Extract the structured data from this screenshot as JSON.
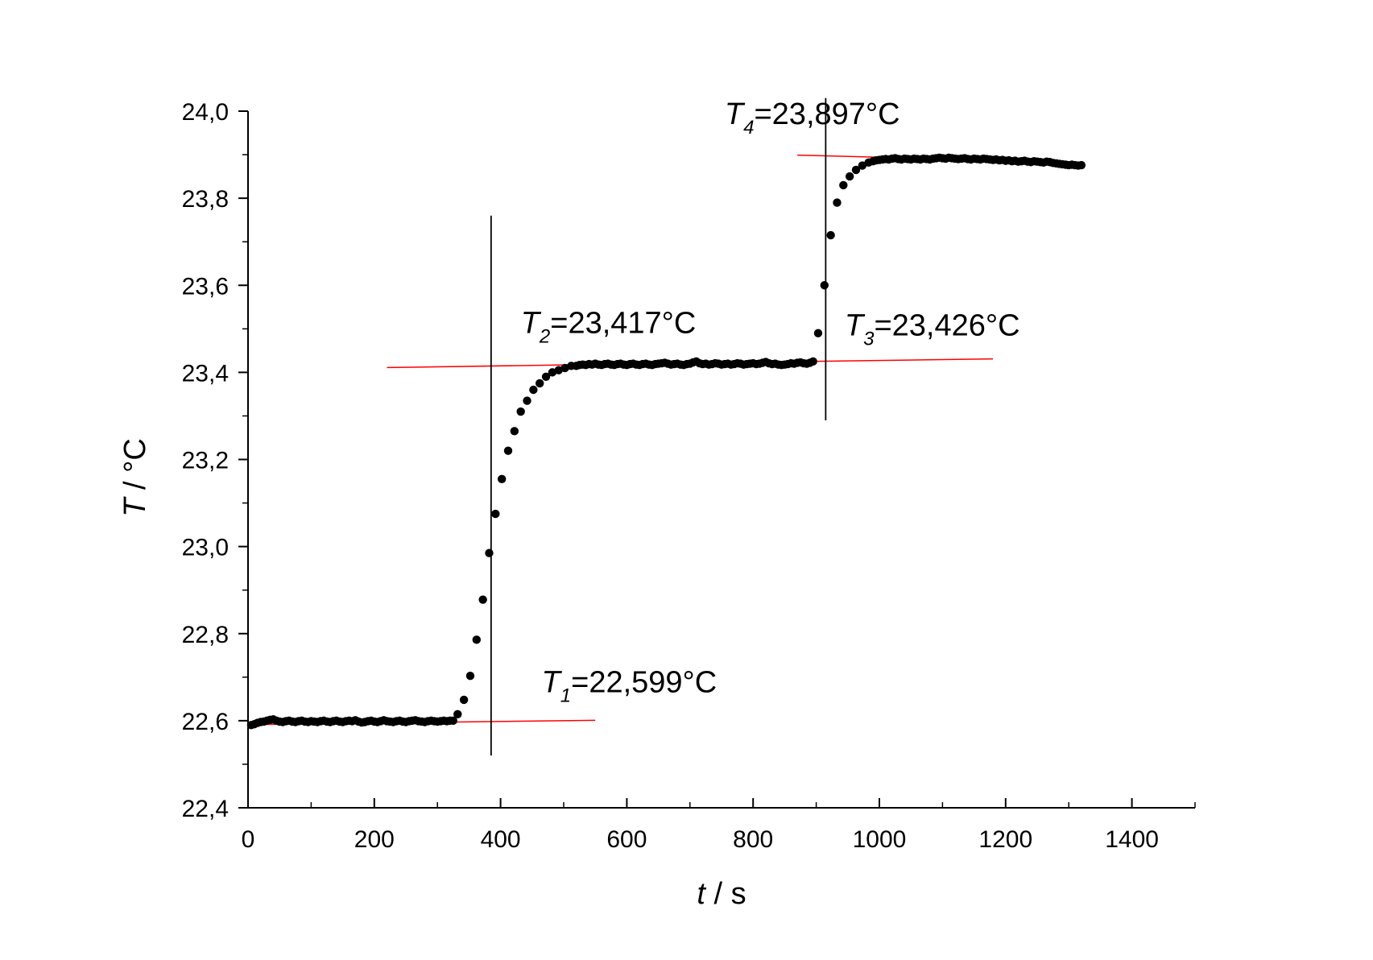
{
  "chart_data": {
    "type": "scatter",
    "xlabel_var": "t",
    "xlabel_unit": " / s",
    "ylabel_var": "T",
    "ylabel_unit": " / °C",
    "xlim": [
      0,
      1500
    ],
    "ylim": [
      22.4,
      24.0
    ],
    "x_ticks": [
      0,
      200,
      400,
      600,
      800,
      1000,
      1200,
      1400
    ],
    "x_tick_labels": [
      "0",
      "200",
      "400",
      "600",
      "800",
      "1000",
      "1200",
      "1400"
    ],
    "y_ticks": [
      22.4,
      22.6,
      22.8,
      23.0,
      23.2,
      23.4,
      23.6,
      23.8,
      24.0
    ],
    "y_tick_labels": [
      "22,4",
      "22,6",
      "22,8",
      "23,0",
      "23,2",
      "23,4",
      "23,6",
      "23,8",
      "24,0"
    ],
    "grid": false,
    "legend": "none",
    "colors": {
      "points": "#000000",
      "fit_lines": "#ff0000",
      "vertical_lines": "#000000"
    },
    "series": [
      {
        "marker": "filled-circle",
        "points": [
          [
            5,
            22.59
          ],
          [
            10,
            22.592
          ],
          [
            15,
            22.595
          ],
          [
            20,
            22.597
          ],
          [
            25,
            22.598
          ],
          [
            30,
            22.6
          ],
          [
            35,
            22.602
          ],
          [
            40,
            22.603
          ],
          [
            45,
            22.6
          ],
          [
            50,
            22.598
          ],
          [
            55,
            22.597
          ],
          [
            60,
            22.599
          ],
          [
            65,
            22.6
          ],
          [
            70,
            22.598
          ],
          [
            75,
            22.597
          ],
          [
            80,
            22.599
          ],
          [
            85,
            22.6
          ],
          [
            90,
            22.598
          ],
          [
            95,
            22.597
          ],
          [
            100,
            22.599
          ],
          [
            105,
            22.598
          ],
          [
            110,
            22.597
          ],
          [
            115,
            22.599
          ],
          [
            120,
            22.6
          ],
          [
            125,
            22.598
          ],
          [
            130,
            22.597
          ],
          [
            135,
            22.599
          ],
          [
            140,
            22.6
          ],
          [
            145,
            22.598
          ],
          [
            150,
            22.597
          ],
          [
            155,
            22.599
          ],
          [
            160,
            22.6
          ],
          [
            165,
            22.599
          ],
          [
            170,
            22.601
          ],
          [
            175,
            22.598
          ],
          [
            180,
            22.596
          ],
          [
            185,
            22.597
          ],
          [
            190,
            22.599
          ],
          [
            195,
            22.6
          ],
          [
            200,
            22.598
          ],
          [
            205,
            22.597
          ],
          [
            210,
            22.599
          ],
          [
            215,
            22.601
          ],
          [
            220,
            22.599
          ],
          [
            225,
            22.598
          ],
          [
            230,
            22.597
          ],
          [
            235,
            22.599
          ],
          [
            240,
            22.6
          ],
          [
            245,
            22.598
          ],
          [
            250,
            22.597
          ],
          [
            255,
            22.599
          ],
          [
            260,
            22.6
          ],
          [
            265,
            22.601
          ],
          [
            270,
            22.599
          ],
          [
            275,
            22.598
          ],
          [
            280,
            22.597
          ],
          [
            285,
            22.599
          ],
          [
            290,
            22.6
          ],
          [
            295,
            22.599
          ],
          [
            300,
            22.598
          ],
          [
            305,
            22.599
          ],
          [
            310,
            22.6
          ],
          [
            315,
            22.599
          ],
          [
            320,
            22.6
          ],
          [
            325,
            22.6
          ],
          [
            332,
            22.615
          ],
          [
            342,
            22.648
          ],
          [
            352,
            22.703
          ],
          [
            362,
            22.786
          ],
          [
            372,
            22.878
          ],
          [
            382,
            22.985
          ],
          [
            392,
            23.075
          ],
          [
            402,
            23.155
          ],
          [
            412,
            23.22
          ],
          [
            422,
            23.265
          ],
          [
            432,
            23.31
          ],
          [
            442,
            23.335
          ],
          [
            452,
            23.36
          ],
          [
            462,
            23.375
          ],
          [
            472,
            23.39
          ],
          [
            482,
            23.4
          ],
          [
            492,
            23.405
          ],
          [
            502,
            23.41
          ],
          [
            512,
            23.415
          ],
          [
            520,
            23.415
          ],
          [
            525,
            23.417
          ],
          [
            530,
            23.418
          ],
          [
            535,
            23.417
          ],
          [
            540,
            23.419
          ],
          [
            545,
            23.418
          ],
          [
            550,
            23.42
          ],
          [
            555,
            23.418
          ],
          [
            560,
            23.417
          ],
          [
            565,
            23.419
          ],
          [
            570,
            23.42
          ],
          [
            575,
            23.418
          ],
          [
            580,
            23.417
          ],
          [
            585,
            23.419
          ],
          [
            590,
            23.42
          ],
          [
            595,
            23.418
          ],
          [
            600,
            23.417
          ],
          [
            605,
            23.419
          ],
          [
            610,
            23.42
          ],
          [
            615,
            23.418
          ],
          [
            620,
            23.417
          ],
          [
            625,
            23.419
          ],
          [
            630,
            23.42
          ],
          [
            635,
            23.418
          ],
          [
            640,
            23.417
          ],
          [
            645,
            23.419
          ],
          [
            650,
            23.42
          ],
          [
            655,
            23.421
          ],
          [
            660,
            23.422
          ],
          [
            665,
            23.42
          ],
          [
            670,
            23.418
          ],
          [
            675,
            23.419
          ],
          [
            680,
            23.42
          ],
          [
            685,
            23.418
          ],
          [
            690,
            23.417
          ],
          [
            695,
            23.419
          ],
          [
            700,
            23.42
          ],
          [
            705,
            23.423
          ],
          [
            710,
            23.425
          ],
          [
            715,
            23.421
          ],
          [
            720,
            23.419
          ],
          [
            725,
            23.42
          ],
          [
            730,
            23.418
          ],
          [
            735,
            23.419
          ],
          [
            740,
            23.421
          ],
          [
            745,
            23.42
          ],
          [
            750,
            23.418
          ],
          [
            755,
            23.419
          ],
          [
            760,
            23.42
          ],
          [
            765,
            23.418
          ],
          [
            770,
            23.419
          ],
          [
            775,
            23.421
          ],
          [
            780,
            23.42
          ],
          [
            785,
            23.418
          ],
          [
            790,
            23.419
          ],
          [
            795,
            23.42
          ],
          [
            800,
            23.421
          ],
          [
            805,
            23.419
          ],
          [
            810,
            23.42
          ],
          [
            815,
            23.422
          ],
          [
            820,
            23.424
          ],
          [
            825,
            23.421
          ],
          [
            830,
            23.419
          ],
          [
            835,
            23.42
          ],
          [
            840,
            23.418
          ],
          [
            845,
            23.417
          ],
          [
            850,
            23.418
          ],
          [
            855,
            23.419
          ],
          [
            860,
            23.421
          ],
          [
            865,
            23.42
          ],
          [
            870,
            23.422
          ],
          [
            875,
            23.423
          ],
          [
            880,
            23.421
          ],
          [
            885,
            23.42
          ],
          [
            890,
            23.422
          ],
          [
            895,
            23.425
          ],
          [
            903,
            23.49
          ],
          [
            913,
            23.6
          ],
          [
            923,
            23.715
          ],
          [
            933,
            23.79
          ],
          [
            943,
            23.83
          ],
          [
            953,
            23.85
          ],
          [
            963,
            23.865
          ],
          [
            973,
            23.875
          ],
          [
            983,
            23.882
          ],
          [
            990,
            23.885
          ],
          [
            995,
            23.887
          ],
          [
            1000,
            23.888
          ],
          [
            1005,
            23.889
          ],
          [
            1010,
            23.89
          ],
          [
            1015,
            23.889
          ],
          [
            1020,
            23.891
          ],
          [
            1025,
            23.892
          ],
          [
            1030,
            23.89
          ],
          [
            1035,
            23.889
          ],
          [
            1040,
            23.891
          ],
          [
            1045,
            23.89
          ],
          [
            1050,
            23.889
          ],
          [
            1055,
            23.891
          ],
          [
            1060,
            23.89
          ],
          [
            1065,
            23.889
          ],
          [
            1070,
            23.891
          ],
          [
            1075,
            23.89
          ],
          [
            1080,
            23.889
          ],
          [
            1085,
            23.891
          ],
          [
            1090,
            23.892
          ],
          [
            1095,
            23.893
          ],
          [
            1100,
            23.892
          ],
          [
            1105,
            23.891
          ],
          [
            1110,
            23.893
          ],
          [
            1115,
            23.892
          ],
          [
            1120,
            23.891
          ],
          [
            1125,
            23.89
          ],
          [
            1130,
            23.891
          ],
          [
            1135,
            23.892
          ],
          [
            1140,
            23.89
          ],
          [
            1145,
            23.889
          ],
          [
            1150,
            23.891
          ],
          [
            1155,
            23.89
          ],
          [
            1160,
            23.889
          ],
          [
            1165,
            23.891
          ],
          [
            1170,
            23.89
          ],
          [
            1175,
            23.889
          ],
          [
            1180,
            23.888
          ],
          [
            1185,
            23.889
          ],
          [
            1190,
            23.887
          ],
          [
            1195,
            23.888
          ],
          [
            1200,
            23.886
          ],
          [
            1205,
            23.887
          ],
          [
            1210,
            23.885
          ],
          [
            1215,
            23.886
          ],
          [
            1220,
            23.884
          ],
          [
            1225,
            23.885
          ],
          [
            1230,
            23.886
          ],
          [
            1235,
            23.884
          ],
          [
            1240,
            23.883
          ],
          [
            1245,
            23.885
          ],
          [
            1250,
            23.884
          ],
          [
            1255,
            23.883
          ],
          [
            1260,
            23.882
          ],
          [
            1265,
            23.884
          ],
          [
            1270,
            23.883
          ],
          [
            1275,
            23.881
          ],
          [
            1280,
            23.88
          ],
          [
            1285,
            23.879
          ],
          [
            1290,
            23.878
          ],
          [
            1295,
            23.877
          ],
          [
            1300,
            23.876
          ],
          [
            1305,
            23.877
          ],
          [
            1310,
            23.876
          ],
          [
            1315,
            23.875
          ],
          [
            1320,
            23.876
          ]
        ]
      }
    ],
    "fit_lines": [
      {
        "x": [
          0,
          550
        ],
        "y": [
          22.591,
          22.601
        ]
      },
      {
        "x": [
          220,
          900
        ],
        "y": [
          23.411,
          23.426
        ]
      },
      {
        "x": [
          885,
          1180
        ],
        "y": [
          23.425,
          23.431
        ]
      },
      {
        "x": [
          870,
          1190
        ],
        "y": [
          23.899,
          23.887
        ]
      }
    ],
    "vertical_lines": [
      {
        "x": 385,
        "y": [
          22.52,
          23.76
        ]
      },
      {
        "x": 915,
        "y": [
          23.29,
          24.03
        ]
      }
    ],
    "annotations": [
      {
        "main": "T",
        "sub": "1",
        "rest": "=22,599°C",
        "x": 465,
        "y": 22.665
      },
      {
        "main": "T",
        "sub": "2",
        "rest": "=23,417°C",
        "x": 432,
        "y": 23.49
      },
      {
        "main": "T",
        "sub": "3",
        "rest": "=23,426°C",
        "x": 945,
        "y": 23.485
      },
      {
        "main": "T",
        "sub": "4",
        "rest": "=23,897°C",
        "x": 755,
        "y": 23.97
      }
    ]
  }
}
